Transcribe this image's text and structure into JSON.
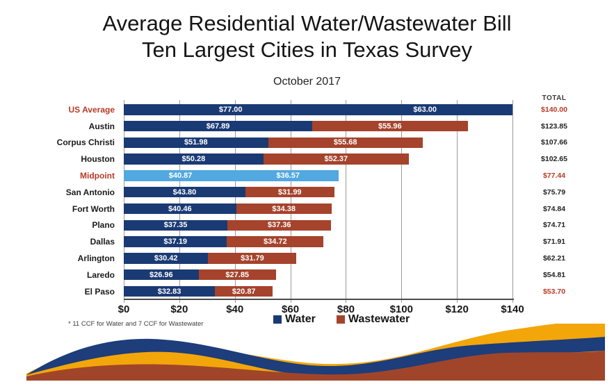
{
  "title": {
    "line1": "Average Residential Water/Wastewater Bill",
    "line2": "Ten Largest Cities in Texas Survey",
    "subtitle": "October 2017"
  },
  "colors": {
    "water": "#1a3a74",
    "wastewater": "#a5432c",
    "midpoint": "#52a8e0",
    "accent_red": "#b83a25",
    "grid": "#9a9a9a",
    "wave_gold": "#f3a60a",
    "wave_navy": "#1d3d7b",
    "wave_red": "#a1452a"
  },
  "chart_data": {
    "type": "bar",
    "orientation": "horizontal-stacked",
    "title": "Average Residential Water/Wastewater Bill Ten Largest Cities in Texas Survey",
    "subtitle": "October 2017",
    "total_header": "TOTAL",
    "xlim": [
      0,
      140
    ],
    "xticks": [
      "$0",
      "$20",
      "$40",
      "$60",
      "$80",
      "$100",
      "$120",
      "$140"
    ],
    "legend": [
      {
        "label": "Water",
        "color": "#1a3a74"
      },
      {
        "label": "Wastewater",
        "color": "#a5432c"
      }
    ],
    "footnote": "* 11 CCF for Water and 7 CCF for Wastewater",
    "categories": [
      "US Average",
      "Austin",
      "Corpus Christi",
      "Houston",
      "Midpoint",
      "San Antonio",
      "Fort Worth",
      "Plano",
      "Dallas",
      "Arlington",
      "Laredo",
      "El Paso"
    ],
    "series": [
      {
        "name": "Water",
        "values": [
          77.0,
          67.89,
          51.98,
          50.28,
          40.87,
          43.8,
          40.46,
          37.35,
          37.19,
          30.42,
          26.96,
          32.83
        ]
      },
      {
        "name": "Wastewater",
        "values": [
          63.0,
          55.96,
          55.68,
          52.37,
          36.57,
          31.99,
          34.38,
          37.36,
          34.72,
          31.79,
          27.85,
          20.87
        ]
      }
    ],
    "rows": [
      {
        "label": "US Average",
        "water": 77.0,
        "wastewater": 63.0,
        "total": 140.0,
        "water_label": "$77.00",
        "wastewater_label": "$63.00",
        "total_label": "$140.00",
        "label_color": "red",
        "total_color": "red",
        "theme": "all-water"
      },
      {
        "label": "Austin",
        "water": 67.89,
        "wastewater": 55.96,
        "total": 123.85,
        "water_label": "$67.89",
        "wastewater_label": "$55.96",
        "total_label": "$123.85",
        "label_color": "black",
        "total_color": "black",
        "theme": "default"
      },
      {
        "label": "Corpus Christi",
        "water": 51.98,
        "wastewater": 55.68,
        "total": 107.66,
        "water_label": "$51.98",
        "wastewater_label": "$55.68",
        "total_label": "$107.66",
        "label_color": "black",
        "total_color": "black",
        "theme": "default"
      },
      {
        "label": "Houston",
        "water": 50.28,
        "wastewater": 52.37,
        "total": 102.65,
        "water_label": "$50.28",
        "wastewater_label": "$52.37",
        "total_label": "$102.65",
        "label_color": "black",
        "total_color": "black",
        "theme": "default"
      },
      {
        "label": "Midpoint",
        "water": 40.87,
        "wastewater": 36.57,
        "total": 77.44,
        "water_label": "$40.87",
        "wastewater_label": "$36.57",
        "total_label": "$77.44",
        "label_color": "red",
        "total_color": "red",
        "theme": "midpoint"
      },
      {
        "label": "San Antonio",
        "water": 43.8,
        "wastewater": 31.99,
        "total": 75.79,
        "water_label": "$43.80",
        "wastewater_label": "$31.99",
        "total_label": "$75.79",
        "label_color": "black",
        "total_color": "black",
        "theme": "default"
      },
      {
        "label": "Fort Worth",
        "water": 40.46,
        "wastewater": 34.38,
        "total": 74.84,
        "water_label": "$40.46",
        "wastewater_label": "$34.38",
        "total_label": "$74.84",
        "label_color": "black",
        "total_color": "black",
        "theme": "default"
      },
      {
        "label": "Plano",
        "water": 37.35,
        "wastewater": 37.36,
        "total": 74.71,
        "water_label": "$37.35",
        "wastewater_label": "$37.36",
        "total_label": "$74.71",
        "label_color": "black",
        "total_color": "black",
        "theme": "default"
      },
      {
        "label": "Dallas",
        "water": 37.19,
        "wastewater": 34.72,
        "total": 71.91,
        "water_label": "$37.19",
        "wastewater_label": "$34.72",
        "total_label": "$71.91",
        "label_color": "black",
        "total_color": "black",
        "theme": "default"
      },
      {
        "label": "Arlington",
        "water": 30.42,
        "wastewater": 31.79,
        "total": 62.21,
        "water_label": "$30.42",
        "wastewater_label": "$31.79",
        "total_label": "$62.21",
        "label_color": "black",
        "total_color": "black",
        "theme": "default"
      },
      {
        "label": "Laredo",
        "water": 26.96,
        "wastewater": 27.85,
        "total": 54.81,
        "water_label": "$26.96",
        "wastewater_label": "$27.85",
        "total_label": "$54.81",
        "label_color": "black",
        "total_color": "black",
        "theme": "default"
      },
      {
        "label": "El Paso",
        "water": 32.83,
        "wastewater": 20.87,
        "total": 53.7,
        "water_label": "$32.83",
        "wastewater_label": "$20.87",
        "total_label": "$53.70",
        "label_color": "black",
        "total_color": "red",
        "theme": "default"
      }
    ]
  }
}
